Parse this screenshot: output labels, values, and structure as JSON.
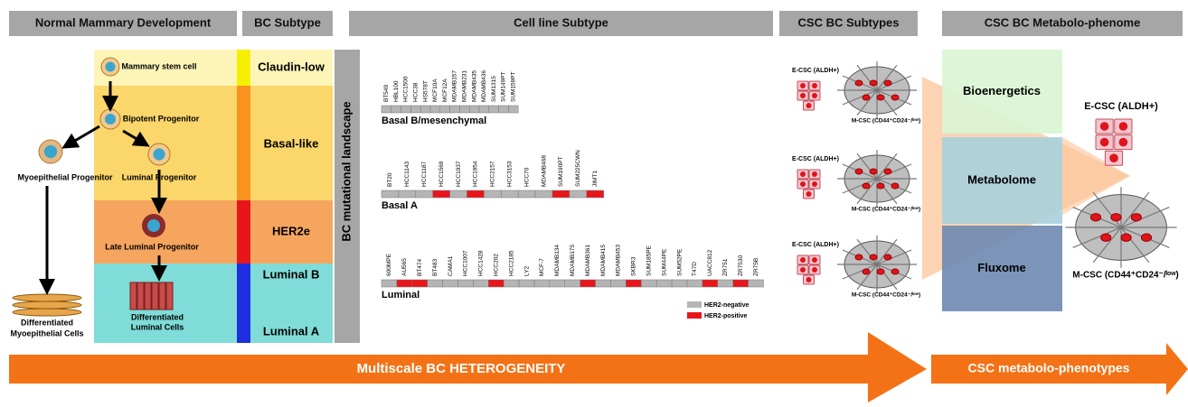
{
  "headers": [
    "Normal Mammary Development",
    "BC Subtype",
    "Cell line Subtype",
    "CSC BC Subtypes",
    "CSC BC Metabolo-phenome"
  ],
  "development": {
    "stem": "Mammary stem cell",
    "bipotent": "Bipotent Progenitor",
    "myo_progenitor": "Myoepithelial Progenitor",
    "luminal_progenitor": "Luminal Progenitor",
    "late_luminal": "Late Luminal Progenitor",
    "diff_myo": [
      "Differentiated",
      "Myoepithelial Cells"
    ],
    "diff_luminal": [
      "Differentiated",
      "Luminal Cells"
    ]
  },
  "subtypes": [
    "Claudin-low",
    "Basal-like",
    "HER2e",
    "Luminal B",
    "Luminal A"
  ],
  "side_label": "BC mutational landscape",
  "cell_lines": [
    {
      "name": "Basal B/mesenchymal",
      "lines": [
        "BT549",
        "HBL100",
        "HCC1500",
        "HCC38",
        "HS578T",
        "MCF10A",
        "MCF12A",
        "MDAMB157",
        "MDAMB231",
        "MDAMB435",
        "MDAMB436",
        "SUM1315",
        "SUM149PT",
        "SUM159PT"
      ],
      "her2": [
        false,
        false,
        false,
        false,
        false,
        false,
        false,
        false,
        false,
        false,
        false,
        false,
        false,
        false
      ]
    },
    {
      "name": "Basal A",
      "lines": [
        "BT20",
        "HCC1143",
        "HCC1187",
        "HCC1569",
        "HCC1937",
        "HCC1954",
        "HCC2157",
        "HCC3153",
        "HCC70",
        "MDAMB468",
        "SUM190PT",
        "SUM225CWN",
        "JIMT1"
      ],
      "her2": [
        false,
        false,
        false,
        true,
        false,
        true,
        false,
        false,
        false,
        false,
        true,
        false,
        true
      ]
    },
    {
      "name": "Luminal",
      "lines": [
        "600MPE",
        "AU565",
        "BT474",
        "BT483",
        "CAMA1",
        "HCC1007",
        "HCC1428",
        "HCC202",
        "HCC2185",
        "LY2",
        "MCF-7",
        "MDAMB134",
        "MDAMB175",
        "MDAMB361",
        "MDAMB415",
        "MDAMB453",
        "SKBR3",
        "SUM185PE",
        "SUM44PE",
        "SUM52PE",
        "T47D",
        "UACC812",
        "ZR751",
        "ZR7530",
        "ZR75B"
      ],
      "her2": [
        false,
        true,
        true,
        false,
        false,
        false,
        false,
        true,
        false,
        false,
        false,
        false,
        false,
        true,
        false,
        false,
        true,
        false,
        false,
        false,
        false,
        true,
        false,
        true,
        false
      ]
    }
  ],
  "legend": {
    "negative": "HER2-negative",
    "positive": "HER2-positive"
  },
  "csc": {
    "e_csc": "E-CSC (ALDH+)",
    "m_csc": "M-CSC (CD44⁺CD24⁻/ˡᵒʷ)"
  },
  "metabolo": [
    "Bioenergetics",
    "Metabolome",
    "Fluxome"
  ],
  "arrows": [
    "Multiscale BC HETEROGENEITY",
    "CSC metabolo-phenotypes"
  ]
}
